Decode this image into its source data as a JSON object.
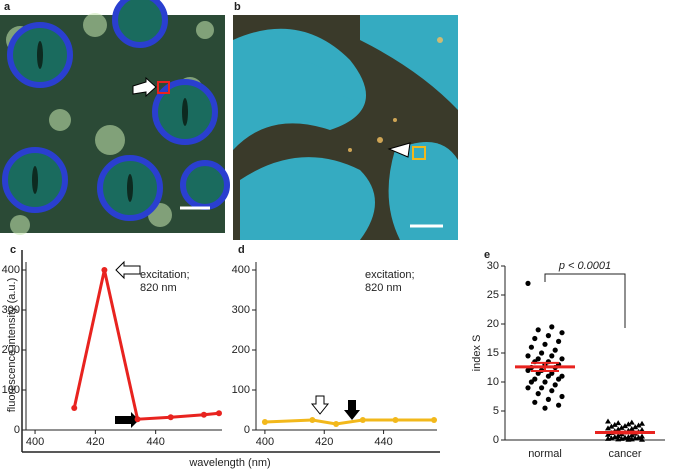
{
  "images": [
    {
      "label": "a"
    },
    {
      "label": "b"
    }
  ],
  "shared": {
    "ylabel": "fluorescence intensity (a.u.)",
    "xlabel": "wavelength (nm)"
  },
  "chart_data": [
    {
      "type": "line",
      "panel_label": "c",
      "annotation": [
        "excitation;",
        "820 nm"
      ],
      "color": "#e8231f",
      "x": [
        413,
        423,
        434,
        445,
        456,
        461
      ],
      "values": [
        55,
        400,
        27,
        32,
        38,
        42
      ],
      "xlim": [
        397,
        462
      ],
      "xticks": [
        400,
        420,
        440
      ],
      "ylim": [
        0,
        420
      ],
      "yticks": [
        0,
        100,
        200,
        300,
        400
      ]
    },
    {
      "type": "line",
      "panel_label": "d",
      "annotation": [
        "excitation;",
        "820 nm"
      ],
      "color": "#f2b81b",
      "x": [
        400,
        416,
        424,
        433,
        444,
        457
      ],
      "values": [
        20,
        25,
        15,
        25,
        25,
        25
      ],
      "xlim": [
        397,
        458
      ],
      "xticks": [
        400,
        420,
        440
      ],
      "ylim": [
        0,
        420
      ],
      "yticks": [
        0,
        100,
        200,
        300,
        400
      ]
    },
    {
      "type": "strip",
      "panel_label": "e",
      "ylabel": "index S",
      "annotation": "p < 0.0001",
      "mean_color": "#e8231f",
      "ylim": [
        0,
        30
      ],
      "yticks": [
        0,
        5,
        10,
        15,
        20,
        25,
        30
      ],
      "groups": [
        {
          "name": "normal",
          "marker": "circle",
          "mean": 12.6,
          "sem": 0.7,
          "values": [
            27,
            19.5,
            19,
            18.5,
            18,
            17.5,
            17,
            16.5,
            16,
            15.5,
            15,
            14.5,
            14.5,
            14,
            14,
            13.5,
            13.5,
            13,
            13,
            12.5,
            12.5,
            12,
            12,
            11.5,
            11.5,
            11,
            11,
            10.5,
            10.5,
            10,
            10,
            9.5,
            9,
            9,
            8.5,
            8,
            7.5,
            7,
            6.5,
            6,
            5.5
          ]
        },
        {
          "name": "cancer",
          "marker": "triangle",
          "mean": 1.3,
          "sem": 0.15,
          "values": [
            3.2,
            3,
            2.9,
            2.8,
            2.7,
            2.6,
            2.5,
            2.4,
            2.3,
            2.2,
            2.1,
            2,
            1.9,
            1.8,
            1.7,
            1.6,
            1.5,
            1.4,
            1.3,
            1.2,
            1.1,
            1,
            0.9,
            0.8,
            0.7,
            0.6,
            0.5,
            0.5,
            0.4,
            0.4,
            0.3,
            0.3,
            0.2,
            0.2,
            0.1,
            0.1,
            0.05,
            0.05
          ]
        }
      ]
    }
  ]
}
